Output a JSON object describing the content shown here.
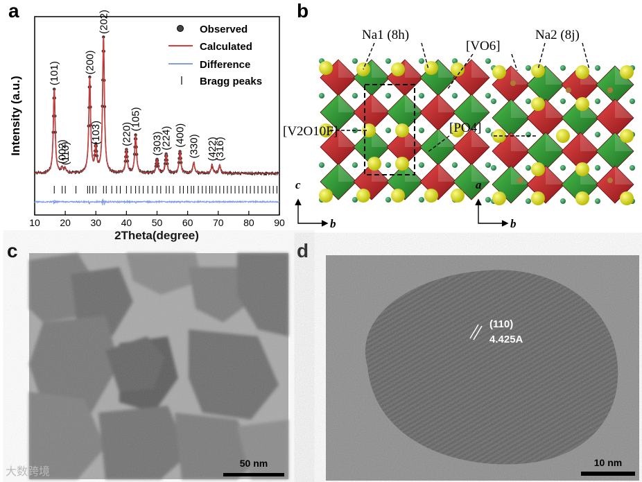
{
  "panels": {
    "a": "a",
    "b": "b",
    "c": "c",
    "d": "d"
  },
  "chart_data": {
    "type": "line",
    "xlabel": "2Theta(degree)",
    "ylabel": "Intensity (a.u.)",
    "xlim": [
      10,
      90
    ],
    "xticks": [
      10,
      20,
      30,
      40,
      50,
      60,
      70,
      80,
      90
    ],
    "legend": {
      "placement": "top-right",
      "entries": [
        "Observed",
        "Calculated",
        "Difference",
        "Bragg peaks"
      ]
    },
    "series": [
      {
        "name": "Observed",
        "color": "#222222",
        "marker": "circle"
      },
      {
        "name": "Calculated",
        "color": "#e03a3a"
      },
      {
        "name": "Difference",
        "color": "#7f9fe0"
      },
      {
        "name": "Bragg peaks",
        "color": "#000000",
        "marker": "tick"
      }
    ],
    "peaks": [
      {
        "label": "(101)",
        "x": 16.4,
        "height": 0.62
      },
      {
        "label": "(002)",
        "x": 19.0,
        "height": 0.04
      },
      {
        "label": "(110)",
        "x": 20.0,
        "height": 0.03
      },
      {
        "label": "(200)",
        "x": 28.0,
        "height": 0.7
      },
      {
        "label": "(103)",
        "x": 30.0,
        "height": 0.18
      },
      {
        "label": "(202)",
        "x": 32.5,
        "height": 1.0
      },
      {
        "label": "(220)",
        "x": 40.0,
        "height": 0.17
      },
      {
        "label": "(105)",
        "x": 43.0,
        "height": 0.28
      },
      {
        "label": "(303)",
        "x": 50.0,
        "height": 0.1
      },
      {
        "label": "(224)",
        "x": 53.0,
        "height": 0.14
      },
      {
        "label": "(400)",
        "x": 57.5,
        "height": 0.16
      },
      {
        "label": "(330)",
        "x": 62.0,
        "height": 0.08
      },
      {
        "label": "(422)",
        "x": 68.0,
        "height": 0.06
      },
      {
        "label": "(316)",
        "x": 70.5,
        "height": 0.06
      }
    ],
    "bragg_positions": [
      16.4,
      19.0,
      20.0,
      23.5,
      27.3,
      28.0,
      29.0,
      30.0,
      32.5,
      33.4,
      35.2,
      36.8,
      38.0,
      40.0,
      41.5,
      43.0,
      44.2,
      45.5,
      47.0,
      48.5,
      50.0,
      51.2,
      53.0,
      54.0,
      55.3,
      57.5,
      58.6,
      60.0,
      61.2,
      62.0,
      63.5,
      64.8,
      66.0,
      67.2,
      68.0,
      69.3,
      70.5,
      71.8,
      73.0,
      74.2,
      75.5,
      76.8,
      78.0,
      79.3,
      80.5,
      81.8,
      83.0,
      84.3,
      85.5,
      86.8,
      88.0,
      89.2
    ]
  },
  "structure": {
    "labels": {
      "na1": "Na1 (8h)",
      "na2": "Na2 (8j)",
      "vo6": "[VO6]",
      "v2o10f": "[V2O10F]",
      "po4": "[PO4]"
    },
    "axes_left": {
      "vertical": "c",
      "horizontal": "b"
    },
    "axes_right": {
      "vertical": "a",
      "horizontal": "b"
    },
    "colors": {
      "vo6": "#c0262a",
      "po4": "#2f9a3a",
      "na": "#d8d820",
      "o": "#2e7d4a",
      "p": "#b07a38"
    }
  },
  "tem": {
    "c_scale": "50 nm",
    "d_scale": "10 nm",
    "d_annotation_line1": "(110)",
    "d_annotation_line2": "4.425A"
  },
  "watermark": "大数跨境"
}
